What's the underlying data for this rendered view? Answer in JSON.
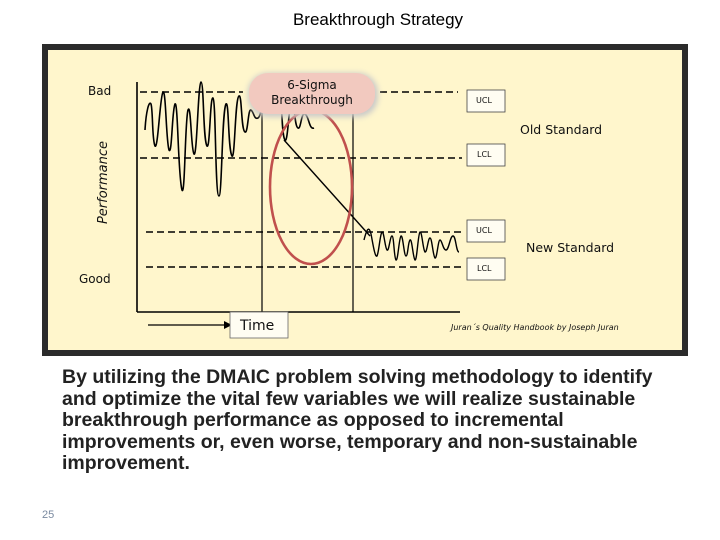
{
  "slide": {
    "title": "Breakthrough Strategy",
    "body": "By utilizing the DMAIC problem solving methodology to identify and optimize the vital few variables we will realize sustainable breakthrough performance as opposed to incremental improvements or, even worse, temporary and non-sustainable improvement.",
    "page_number": "25"
  },
  "diagram": {
    "y_axis_label": "Performance",
    "y_top_label": "Bad",
    "y_bottom_label": "Good",
    "x_axis_label": "Time",
    "callout": "6-Sigma\nBreakthrough",
    "old_standard": "Old Standard",
    "new_standard": "New Standard",
    "ucl_old": "UCL",
    "lcl_old": "LCL",
    "ucl_new": "UCL",
    "lcl_new": "LCL",
    "citation": "Juran´s Quality Handbook by Joseph Juran",
    "colors": {
      "panel": "#fff6cc",
      "frame": "#2b2b2b",
      "highlight_circle": "#c0504d",
      "callout_fill": "#f2c9bf",
      "line": "#000000"
    }
  }
}
